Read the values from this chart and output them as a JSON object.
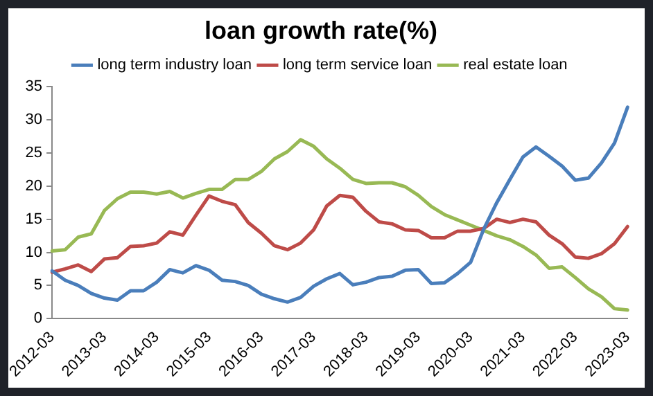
{
  "chart_data": {
    "type": "line",
    "title": "loan growth rate(%)",
    "categories": [
      "2012-03",
      null,
      null,
      null,
      "2013-03",
      null,
      null,
      null,
      "2014-03",
      null,
      null,
      null,
      "2015-03",
      null,
      null,
      null,
      "2016-03",
      null,
      null,
      null,
      "2017-03",
      null,
      null,
      null,
      "2018-03",
      null,
      null,
      null,
      "2019-03",
      null,
      null,
      null,
      "2020-03",
      null,
      null,
      null,
      "2021-03",
      null,
      null,
      null,
      "2022-03",
      null,
      null,
      null,
      "2023-03"
    ],
    "series": [
      {
        "name": "long term industry loan",
        "color": "#4a7ebb",
        "values": [
          7.2,
          5.8,
          5.0,
          3.8,
          3.1,
          2.8,
          4.2,
          4.2,
          5.5,
          7.4,
          6.9,
          8.0,
          7.3,
          5.8,
          5.6,
          5.0,
          3.7,
          3.0,
          2.5,
          3.2,
          4.9,
          6.0,
          6.8,
          5.1,
          5.5,
          6.2,
          6.4,
          7.3,
          7.4,
          5.3,
          5.4,
          6.8,
          8.5,
          13.5,
          17.5,
          21.0,
          24.4,
          25.9,
          24.5,
          23.0,
          20.9,
          21.2,
          23.5,
          26.5,
          31.9
        ]
      },
      {
        "name": "long term service loan",
        "color": "#be4b48",
        "values": [
          7.0,
          7.5,
          8.1,
          7.1,
          9.0,
          9.2,
          10.9,
          11.0,
          11.4,
          13.1,
          12.6,
          15.6,
          18.5,
          17.7,
          17.2,
          14.5,
          12.9,
          11.0,
          10.4,
          11.4,
          13.4,
          17.0,
          18.6,
          18.3,
          16.2,
          14.6,
          14.3,
          13.4,
          13.3,
          12.2,
          12.2,
          13.2,
          13.2,
          13.6,
          15.0,
          14.5,
          15.0,
          14.6,
          12.6,
          11.3,
          9.3,
          9.1,
          9.8,
          11.3,
          13.9
        ]
      },
      {
        "name": "real estate loan",
        "color": "#98b954",
        "values": [
          10.2,
          10.4,
          12.3,
          12.8,
          16.3,
          18.1,
          19.1,
          19.1,
          18.8,
          19.2,
          18.2,
          18.9,
          19.5,
          19.5,
          21.0,
          21.0,
          22.2,
          24.1,
          25.2,
          27.0,
          26.0,
          24.1,
          22.7,
          21.0,
          20.4,
          20.5,
          20.5,
          19.9,
          18.6,
          16.9,
          15.7,
          14.9,
          14.1,
          13.3,
          12.5,
          11.9,
          10.9,
          9.6,
          7.6,
          7.8,
          6.2,
          4.5,
          3.3,
          1.5,
          1.3
        ]
      }
    ],
    "ylim": [
      0,
      35
    ],
    "yticks": [
      0,
      5,
      10,
      15,
      20,
      25,
      30,
      35
    ],
    "grid": false,
    "legend": "top",
    "marker": "none",
    "line_style": "solid"
  }
}
